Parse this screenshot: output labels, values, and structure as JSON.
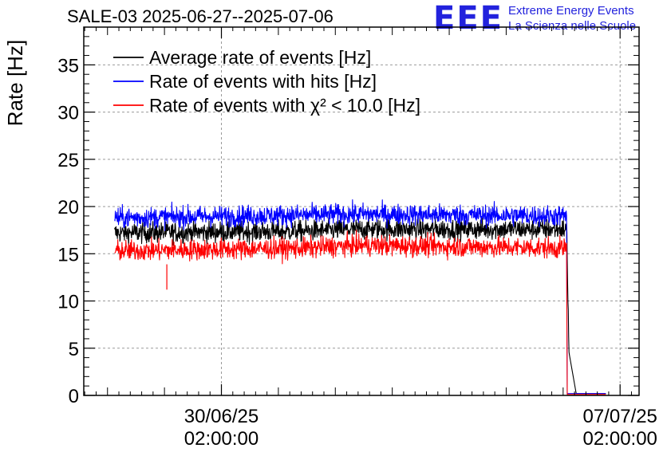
{
  "header": {
    "title": "SALE-03 2025-06-27--2025-07-06",
    "logo_text": "EEE",
    "logo_line1": "Extreme Energy Events",
    "logo_line2": "La Scienza nelle Scuole"
  },
  "colors": {
    "average": "#000000",
    "hits": "#0000ff",
    "chi2": "#ff0000",
    "logo": "#2222dd"
  },
  "chart_data": {
    "type": "line",
    "ylabel": "Rate [Hz]",
    "ylim": [
      0,
      39
    ],
    "yticks": [
      0,
      5,
      10,
      15,
      20,
      25,
      30,
      35
    ],
    "xlim": [
      "2025-06-27 16:00",
      "2025-07-07 10:00"
    ],
    "xticks": [
      {
        "x": "2025-06-30 02:00",
        "label_date": "30/06/25",
        "label_time": "02:00:00"
      },
      {
        "x": "2025-07-07 02:00",
        "label_date": "07/07/25",
        "label_time": "02:00:00"
      }
    ],
    "grid": true,
    "legend_position": "top-left",
    "series": [
      {
        "name": "Average rate of events [Hz]",
        "color": "#000000",
        "mean": [
          [
            "2025-06-28 05:00",
            17.2
          ],
          [
            "2025-07-01 12:00",
            17.4
          ],
          [
            "2025-07-02 12:00",
            17.6
          ],
          [
            "2025-07-06 03:30",
            17.6
          ],
          [
            "2025-07-06 04:30",
            4.5
          ],
          [
            "2025-07-06 07:30",
            0.2
          ],
          [
            "2025-07-06 20:00",
            0.2
          ]
        ]
      },
      {
        "name": "Rate of events with hits [Hz]",
        "color": "#0000ff",
        "mean": [
          [
            "2025-06-28 05:00",
            18.8
          ],
          [
            "2025-07-01 12:00",
            19.1
          ],
          [
            "2025-07-02 12:00",
            19.2
          ],
          [
            "2025-07-06 03:30",
            19.0
          ],
          [
            "2025-07-06 03:40",
            0.2
          ],
          [
            "2025-07-06 20:00",
            0.2
          ]
        ]
      },
      {
        "name": "Rate of events with χ² < 10.0 [Hz]",
        "color": "#ff0000",
        "mean": [
          [
            "2025-06-28 05:00",
            15.3
          ],
          [
            "2025-07-01 12:00",
            15.6
          ],
          [
            "2025-07-02 12:00",
            15.9
          ],
          [
            "2025-07-06 03:30",
            15.6
          ],
          [
            "2025-07-06 03:40",
            0.1
          ],
          [
            "2025-07-06 20:00",
            0.1
          ]
        ]
      }
    ],
    "annotations": [
      {
        "x": "2025-06-29 03:00",
        "y": 11.2,
        "series": "Rate of events with χ² < 10.0 [Hz]",
        "note": "dip"
      }
    ]
  }
}
